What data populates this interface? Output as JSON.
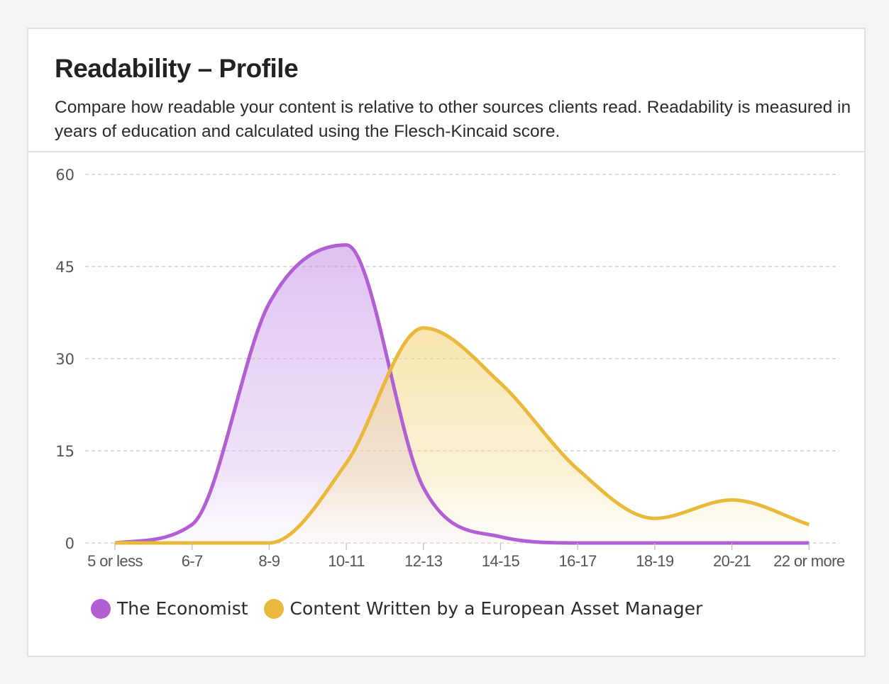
{
  "card": {
    "title": "Readability – Profile",
    "description": "Compare how readable your content is relative to other sources clients read. Readability is measured in years of education and calculated using the Flesch-Kincaid score."
  },
  "colors": {
    "economist": "#b35fd4",
    "manager": "#e8b93a",
    "grid": "#c8c8c8",
    "axis_text": "#555555"
  },
  "chart_data": {
    "type": "area",
    "categories": [
      "5 or less",
      "6-7",
      "8-9",
      "10-11",
      "12-13",
      "14-15",
      "16-17",
      "18-19",
      "20-21",
      "22 or more"
    ],
    "ylim": [
      0,
      60
    ],
    "yticks": [
      "0",
      "15",
      "30",
      "45",
      "60"
    ],
    "grid": true,
    "legend_position": "bottom-left",
    "series": [
      {
        "name": "The Economist",
        "color": "#b35fd4",
        "values": [
          0,
          3,
          39,
          48.5,
          9,
          1,
          0,
          0,
          0,
          0
        ]
      },
      {
        "name": "Content Written by a European Asset Manager",
        "color": "#e8b93a",
        "values": [
          0,
          0,
          0,
          13,
          35,
          26,
          12,
          4,
          7,
          3
        ]
      }
    ]
  }
}
